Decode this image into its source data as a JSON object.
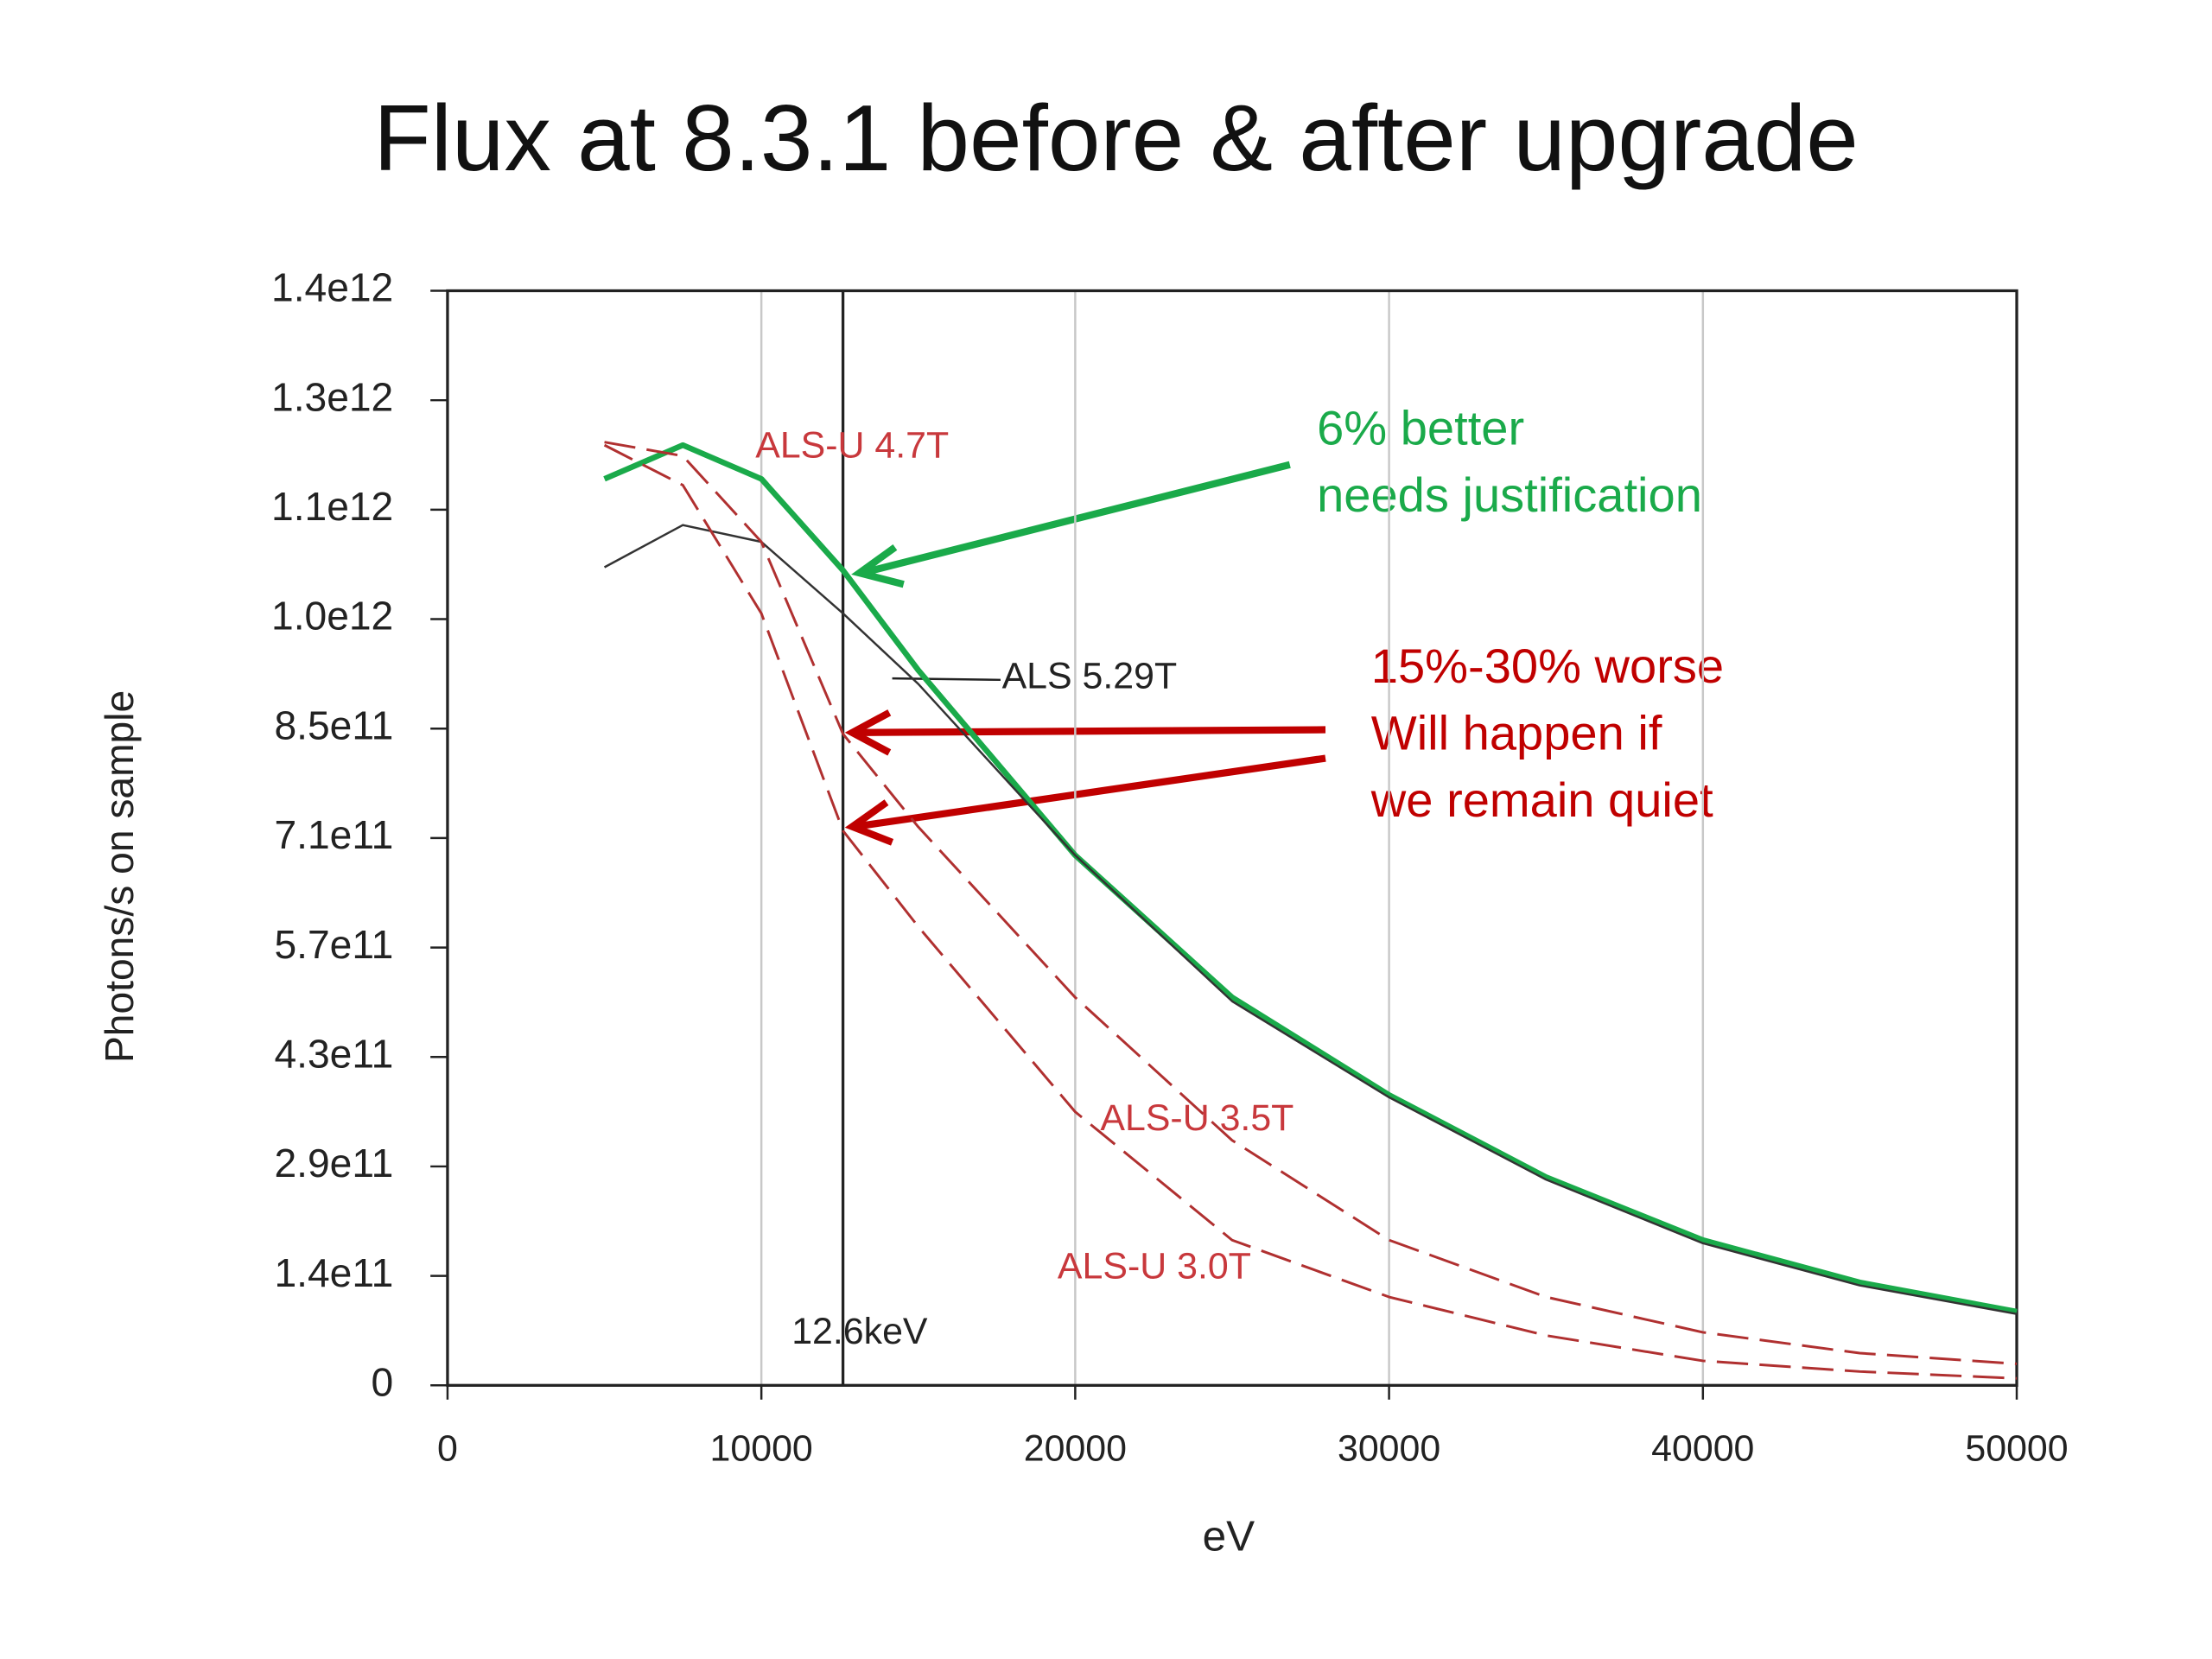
{
  "chart_data": {
    "type": "line",
    "title": "Flux at 8.3.1  before & after upgrade",
    "xlabel": "eV",
    "ylabel": "Photons/s on sample",
    "x": [
      5000,
      7500,
      10000,
      12600,
      15000,
      20000,
      25000,
      30000,
      35000,
      40000,
      45000,
      50000
    ],
    "series": [
      {
        "name": "ALS-U 4.7T",
        "color": "#1aaa4a",
        "dash": false,
        "values": [
          1180000000000.0,
          1224000000000.0,
          1180000000000.0,
          1061000000000.0,
          931000000000.0,
          690000000000.0,
          505000000000.0,
          378000000000.0,
          271000000000.0,
          189000000000.0,
          134000000000.0,
          96000000000.0
        ]
      },
      {
        "name": "ALS 5.29T",
        "color": "#333333",
        "dash": false,
        "values": [
          1065000000000.0,
          1120000000000.0,
          1098000000000.0,
          1005000000000.0,
          913000000000.0,
          690000000000.0,
          500000000000.0,
          375000000000.0,
          268000000000.0,
          185000000000.0,
          130000000000.0,
          93000000000.0
        ]
      },
      {
        "name": "ALS-U 3.5T",
        "color": "#b03030",
        "dash": true,
        "values": [
          1228000000000.0,
          1210000000000.0,
          1098000000000.0,
          848000000000.0,
          727000000000.0,
          505000000000.0,
          319000000000.0,
          189000000000.0,
          115000000000.0,
          69000000000.0,
          42000000000.0,
          28000000000.0
        ]
      },
      {
        "name": "ALS-U 3.0T",
        "color": "#b03030",
        "dash": true,
        "values": [
          1224000000000.0,
          1172000000000.0,
          1005000000000.0,
          722000000000.0,
          597000000000.0,
          356000000000.0,
          189000000000.0,
          115000000000.0,
          65000000000.0,
          32000000000.0,
          18000000000.0,
          9000000000.0
        ]
      }
    ],
    "xlim": [
      0,
      50000
    ],
    "xticks": [
      0,
      10000,
      20000,
      30000,
      40000,
      50000
    ],
    "ylim": [
      0,
      1425000000000.0
    ],
    "yticks": [
      0,
      {
        "value": 142500000000.0,
        "label": "1.4e11"
      },
      {
        "value": 285000000000.0,
        "label": "2.9e11"
      },
      {
        "value": 427500000000.0,
        "label": "4.3e11"
      },
      {
        "value": 570000000000.0,
        "label": "5.7e11"
      },
      {
        "value": 712500000000.0,
        "label": "7.1e11"
      },
      {
        "value": 855000000000.0,
        "label": "8.5e11"
      },
      {
        "value": 997500000000.0,
        "label": "1.0e12"
      },
      {
        "value": 1140000000000.0,
        "label": "1.1e12"
      },
      {
        "value": 1282500000000.0,
        "label": "1.3e12"
      },
      {
        "value": 1425000000000.0,
        "label": "1.4e12"
      }
    ],
    "grid": true,
    "marker_line": {
      "x": 12600,
      "label": "12.6keV"
    },
    "annotations": [
      "6% better",
      "needs justification",
      "15%-30% worse",
      "Will happen if",
      "we remain quiet"
    ]
  }
}
